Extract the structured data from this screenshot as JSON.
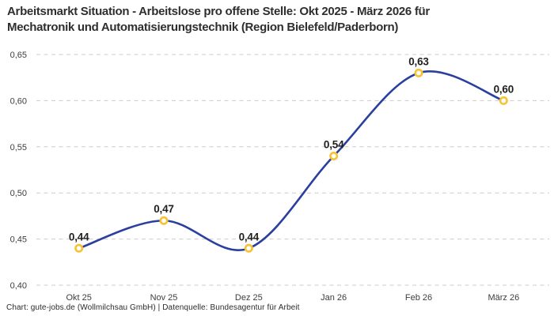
{
  "header": {
    "title_line1": "Arbeitsmarkt Situation - Arbeitslose pro offene Stelle: Okt 2025 - März 2026 für",
    "title_line2": "Mechatronik und Automatisierungstechnik (Region Bielefeld/Paderborn)"
  },
  "chart_data": {
    "type": "line",
    "title": "Arbeitsmarkt Situation - Arbeitslose pro offene Stelle: Okt 2025 - März 2026 für Mechatronik und Automatisierungstechnik (Region Bielefeld/Paderborn)",
    "categories": [
      "Okt 25",
      "Nov 25",
      "Dez 25",
      "Jan 26",
      "Feb 26",
      "März 26"
    ],
    "values": [
      0.44,
      0.47,
      0.44,
      0.54,
      0.63,
      0.6
    ],
    "value_labels": [
      "0,44",
      "0,47",
      "0,44",
      "0,54",
      "0,63",
      "0,60"
    ],
    "xlabel": "",
    "ylabel": "",
    "ylim": [
      0.4,
      0.65
    ],
    "yticks": [
      0.4,
      0.45,
      0.5,
      0.55,
      0.6,
      0.65
    ],
    "ytick_labels": [
      "0,40",
      "0,45",
      "0,50",
      "0,55",
      "0,60",
      "0,65"
    ],
    "grid": "horizontal-dashed",
    "legend": "none",
    "curve": "smooth",
    "colors": {
      "line": "#2B3F9E",
      "marker_fill": "#FFFFFF",
      "marker_stroke": "#F8C332",
      "gridline": "#CBCBCB",
      "tick_label": "#3D3D3D",
      "value_label": "#1F1F1F"
    }
  },
  "footer": {
    "credit": "Chart: gute-jobs.de (Wollmilchsau GmbH) | Datenquelle: Bundesagentur für Arbeit"
  }
}
